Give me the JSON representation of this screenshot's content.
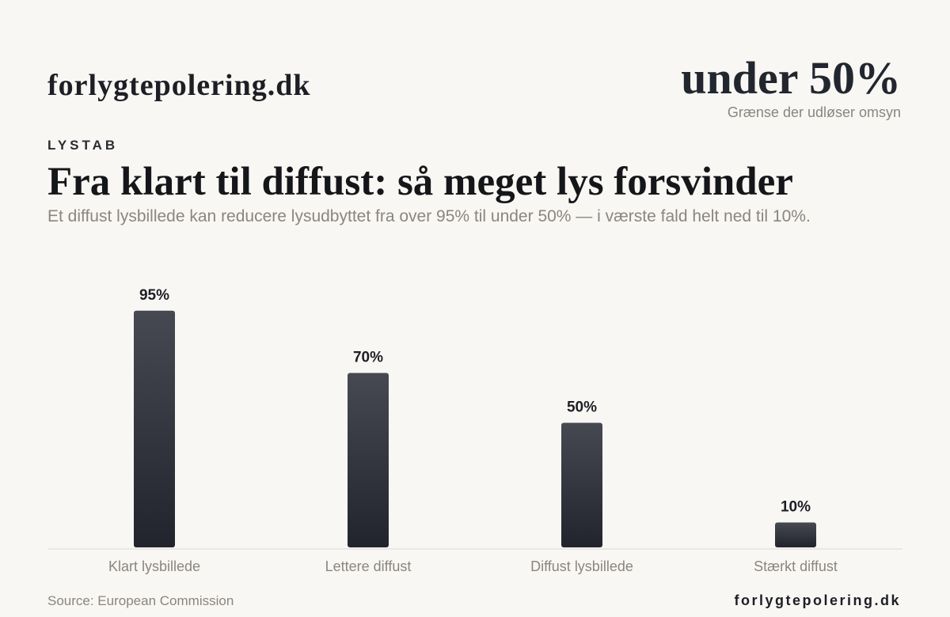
{
  "header": {
    "brand": "forlygtepolering.dk",
    "stat_value": "under 50%",
    "stat_caption": "Grænse der udløser omsyn"
  },
  "eyebrow": "LYSTAB",
  "footer": {
    "source": "Source: European Commission",
    "brand": "forlygtepolering.dk"
  },
  "colors": {
    "bar_top": "#474952",
    "bar_bottom": "#22242d",
    "axis": "#dcd9d4",
    "label": "#8a8580",
    "value_label": "#1d1f25"
  },
  "chart_data": {
    "type": "bar",
    "title": "Fra klart til diffust: så meget lys forsvinder",
    "subtitle": "Et diffust lysbillede kan reducere lysudbyttet fra over 95% til under 50% — i værste fald helt ned til 10%.",
    "categories": [
      "Klart lysbillede",
      "Lettere diffust",
      "Diffust lysbillede",
      "Stærkt diffust"
    ],
    "values": [
      95,
      70,
      50,
      10
    ],
    "value_labels": [
      "95%",
      "70%",
      "50%",
      "10%"
    ],
    "xlabel": "",
    "ylabel": "",
    "ylim": [
      0,
      100
    ],
    "grid": false,
    "legend": "none"
  }
}
